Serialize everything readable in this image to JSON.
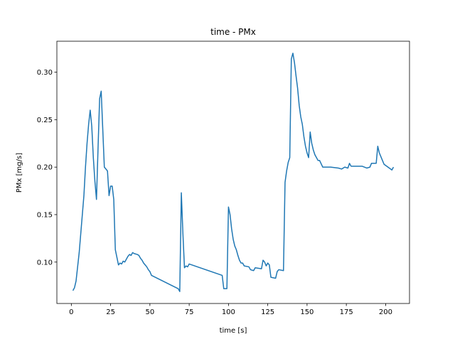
{
  "chart_data": {
    "type": "line",
    "title": "time - PMx",
    "xlabel": "time [s]",
    "ylabel": "PMx [mg/s]",
    "x": [
      1,
      2,
      3,
      4,
      5,
      6,
      7,
      8,
      9,
      10,
      11,
      12,
      13,
      14,
      15,
      16,
      17,
      18,
      19,
      20,
      21,
      23,
      24,
      25,
      26,
      27,
      28,
      29,
      30,
      31,
      32,
      33,
      34,
      35,
      36,
      37,
      38,
      39,
      40,
      42,
      43,
      44,
      45,
      46,
      47,
      48,
      49,
      50,
      51,
      68,
      69,
      70,
      71,
      72,
      73,
      74,
      75,
      96,
      97,
      99,
      100,
      101,
      102,
      103,
      104,
      105,
      106,
      107,
      108,
      109,
      110,
      113,
      114,
      116,
      117,
      121,
      122,
      123,
      124,
      125,
      126,
      127,
      130,
      131,
      132,
      135,
      136,
      137,
      138,
      139,
      140,
      141,
      142,
      143,
      144,
      145,
      146,
      147,
      148,
      149,
      150,
      151,
      152,
      153,
      154,
      155,
      156,
      157,
      158,
      160,
      165,
      170,
      172,
      174,
      176,
      177,
      178,
      185,
      188,
      190,
      191,
      194,
      195,
      196,
      198,
      199,
      204,
      205
    ],
    "series": [
      {
        "name": "PMx",
        "color": "#1f77b4",
        "values": [
          0.07,
          0.073,
          0.08,
          0.095,
          0.11,
          0.13,
          0.15,
          0.17,
          0.2,
          0.225,
          0.245,
          0.26,
          0.243,
          0.21,
          0.185,
          0.166,
          0.22,
          0.272,
          0.28,
          0.24,
          0.2,
          0.196,
          0.17,
          0.18,
          0.18,
          0.166,
          0.113,
          0.105,
          0.097,
          0.099,
          0.098,
          0.101,
          0.1,
          0.103,
          0.106,
          0.108,
          0.107,
          0.11,
          0.109,
          0.108,
          0.107,
          0.104,
          0.102,
          0.099,
          0.097,
          0.095,
          0.092,
          0.09,
          0.086,
          0.072,
          0.069,
          0.173,
          0.13,
          0.094,
          0.096,
          0.095,
          0.098,
          0.086,
          0.072,
          0.072,
          0.158,
          0.15,
          0.135,
          0.124,
          0.117,
          0.113,
          0.107,
          0.102,
          0.099,
          0.099,
          0.096,
          0.095,
          0.092,
          0.091,
          0.094,
          0.093,
          0.102,
          0.1,
          0.096,
          0.099,
          0.097,
          0.084,
          0.083,
          0.09,
          0.092,
          0.091,
          0.184,
          0.196,
          0.205,
          0.21,
          0.314,
          0.32,
          0.31,
          0.296,
          0.283,
          0.265,
          0.253,
          0.245,
          0.232,
          0.222,
          0.215,
          0.21,
          0.237,
          0.225,
          0.218,
          0.213,
          0.21,
          0.207,
          0.207,
          0.2,
          0.2,
          0.199,
          0.198,
          0.2,
          0.199,
          0.204,
          0.201,
          0.201,
          0.199,
          0.2,
          0.204,
          0.204,
          0.222,
          0.215,
          0.207,
          0.203,
          0.197,
          0.2
        ]
      }
    ],
    "xlim": [
      -9.2,
      215.2
    ],
    "ylim": [
      0.0564,
      0.3326
    ],
    "xticks": [
      0,
      25,
      50,
      75,
      100,
      125,
      150,
      175,
      200
    ],
    "yticks": [
      {
        "value": 0.1,
        "label": "0.10"
      },
      {
        "value": 0.15,
        "label": "0.15"
      },
      {
        "value": 0.2,
        "label": "0.20"
      },
      {
        "value": 0.25,
        "label": "0.25"
      },
      {
        "value": 0.3,
        "label": "0.30"
      }
    ]
  }
}
